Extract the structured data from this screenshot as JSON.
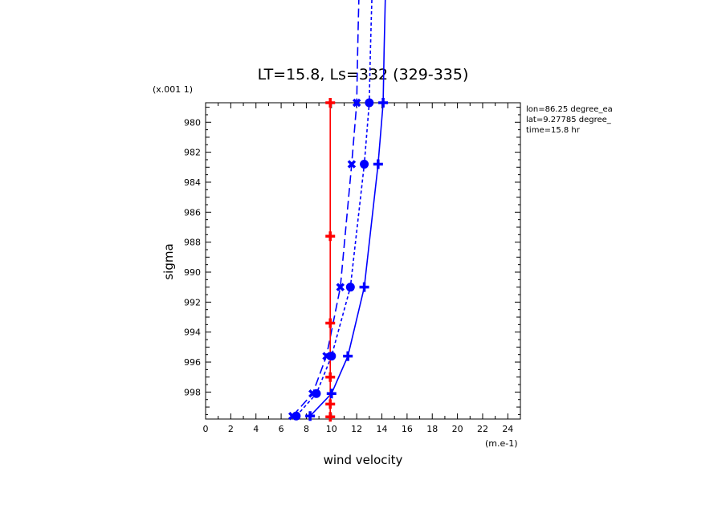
{
  "chart_data": {
    "type": "line",
    "title": "LT=15.8, Ls=332 (329-335)",
    "xlabel": "wind velocity",
    "ylabel": "sigma",
    "x_unit": "(m.e-1)",
    "y_scale_note": "(x.001 1)",
    "info": [
      "lon=86.25 degree_ea",
      "lat=9.27785 degree_",
      "time=15.8 hr"
    ],
    "xlim": [
      0,
      25
    ],
    "ylim": [
      999.8,
      978.7
    ],
    "x_ticks": [
      "0",
      "2",
      "4",
      "6",
      "8",
      "10",
      "12",
      "14",
      "16",
      "18",
      "20",
      "22",
      "24"
    ],
    "y_ticks": [
      "980",
      "982",
      "984",
      "986",
      "988",
      "990",
      "992",
      "994",
      "996",
      "998"
    ],
    "series": [
      {
        "color": "#0000ff",
        "style": "solid",
        "marker": "plus",
        "points": [
          [
            8.3,
            999.6
          ],
          [
            10.0,
            998.1
          ],
          [
            11.3,
            995.6
          ],
          [
            12.6,
            991.0
          ],
          [
            13.7,
            982.8
          ],
          [
            14.1,
            978.7
          ]
        ],
        "extend_to": [
          14.6,
          963
        ]
      },
      {
        "color": "#0000ff",
        "style": "dotted",
        "marker": "circle",
        "points": [
          [
            7.2,
            999.6
          ],
          [
            8.8,
            998.1
          ],
          [
            10.0,
            995.6
          ],
          [
            11.5,
            991.0
          ],
          [
            12.6,
            982.8
          ],
          [
            13.0,
            978.7
          ]
        ],
        "extend_to": [
          13.6,
          963
        ]
      },
      {
        "color": "#0000ff",
        "style": "dashed",
        "marker": "x",
        "points": [
          [
            6.9,
            999.6
          ],
          [
            8.5,
            998.1
          ],
          [
            9.6,
            995.6
          ],
          [
            10.7,
            991.0
          ],
          [
            11.6,
            982.8
          ],
          [
            12.0,
            978.7
          ]
        ],
        "extend_to": [
          12.5,
          963
        ]
      },
      {
        "color": "#ff0000",
        "style": "solid",
        "marker": "plus",
        "points": [
          [
            9.9,
            999.65
          ],
          [
            9.9,
            998.8
          ],
          [
            9.9,
            997.0
          ],
          [
            9.9,
            993.4
          ],
          [
            9.9,
            987.6
          ],
          [
            9.9,
            978.7
          ]
        ]
      }
    ]
  }
}
